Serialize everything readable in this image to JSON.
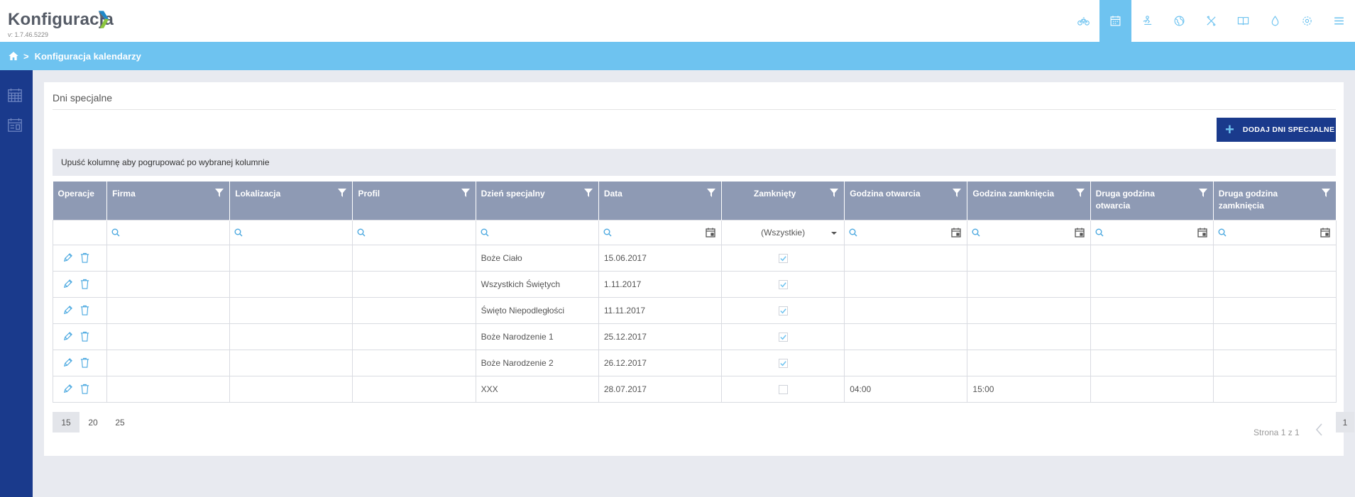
{
  "app": {
    "title": "Konfiguracja",
    "version": "v: 1.7.46.5229",
    "colors": {
      "accent": "#6ec3f0",
      "navy": "#1a3a8c",
      "header_grey": "#8e9ab4"
    }
  },
  "topnav": {
    "items": [
      {
        "icon": "bike-icon"
      },
      {
        "icon": "calendar-icon",
        "active": true
      },
      {
        "icon": "skater-icon"
      },
      {
        "icon": "globe-icon"
      },
      {
        "icon": "tools-icon"
      },
      {
        "icon": "book-icon"
      },
      {
        "icon": "drop-icon"
      },
      {
        "icon": "gear-icon"
      },
      {
        "icon": "menu-icon"
      }
    ]
  },
  "breadcrumb": {
    "current": "Konfiguracja kalendarzy"
  },
  "panel": {
    "title": "Dni specjalne",
    "add_button_label": "DODAJ DNI SPECJALNE",
    "group_hint": "Upuść kolumnę aby pogrupować po wybranej kolumnie"
  },
  "grid": {
    "columns": [
      "Operacje",
      "Firma",
      "Lokalizacja",
      "Profil",
      "Dzień specjalny",
      "Data",
      "Zamknięty",
      "Godzina otwarcia",
      "Godzina zamknięcia",
      "Druga godzina otwarcia",
      "Druga godzina zamknięcia"
    ],
    "filter_dropdown": "(Wszystkie)",
    "rows": [
      {
        "firma": "",
        "lokalizacja": "",
        "profil": "",
        "dzien": "Boże Ciało",
        "data": "15.06.2017",
        "zamkniety": true,
        "otwarcia": "",
        "zamkniecia": "",
        "druga_otwarcia": "",
        "druga_zamkniecia": ""
      },
      {
        "firma": "",
        "lokalizacja": "",
        "profil": "",
        "dzien": "Wszystkich Świętych",
        "data": "1.11.2017",
        "zamkniety": true,
        "otwarcia": "",
        "zamkniecia": "",
        "druga_otwarcia": "",
        "druga_zamkniecia": ""
      },
      {
        "firma": "",
        "lokalizacja": "",
        "profil": "",
        "dzien": "Święto Niepodległości",
        "data": "11.11.2017",
        "zamkniety": true,
        "otwarcia": "",
        "zamkniecia": "",
        "druga_otwarcia": "",
        "druga_zamkniecia": ""
      },
      {
        "firma": "",
        "lokalizacja": "",
        "profil": "",
        "dzien": "Boże Narodzenie 1",
        "data": "25.12.2017",
        "zamkniety": true,
        "otwarcia": "",
        "zamkniecia": "",
        "druga_otwarcia": "",
        "druga_zamkniecia": ""
      },
      {
        "firma": "",
        "lokalizacja": "",
        "profil": "",
        "dzien": "Boże Narodzenie 2",
        "data": "26.12.2017",
        "zamkniety": true,
        "otwarcia": "",
        "zamkniecia": "",
        "druga_otwarcia": "",
        "druga_zamkniecia": ""
      },
      {
        "firma": "",
        "lokalizacja": "",
        "profil": "",
        "dzien": "XXX",
        "data": "28.07.2017",
        "zamkniety": false,
        "otwarcia": "04:00",
        "zamkniecia": "15:00",
        "druga_otwarcia": "",
        "druga_zamkniecia": ""
      }
    ]
  },
  "pager": {
    "sizes": [
      "15",
      "20",
      "25"
    ],
    "active_size": "15",
    "info": "Strona 1 z 1",
    "current_page": "1"
  }
}
